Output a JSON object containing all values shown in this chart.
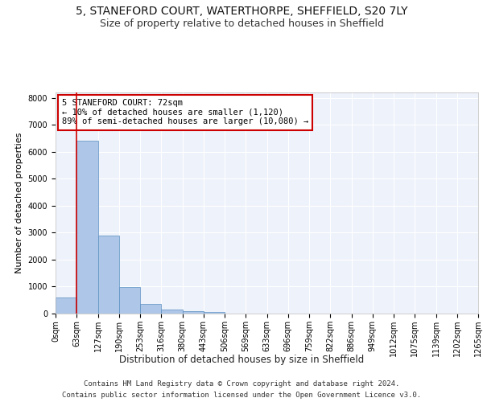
{
  "title_line1": "5, STANEFORD COURT, WATERTHORPE, SHEFFIELD, S20 7LY",
  "title_line2": "Size of property relative to detached houses in Sheffield",
  "xlabel": "Distribution of detached houses by size in Sheffield",
  "ylabel": "Number of detached properties",
  "bar_values": [
    600,
    6400,
    2900,
    975,
    350,
    160,
    90,
    60,
    0,
    0,
    0,
    0,
    0,
    0,
    0,
    0,
    0,
    0,
    0,
    0
  ],
  "bar_labels": [
    "0sqm",
    "63sqm",
    "127sqm",
    "190sqm",
    "253sqm",
    "316sqm",
    "380sqm",
    "443sqm",
    "506sqm",
    "569sqm",
    "633sqm",
    "696sqm",
    "759sqm",
    "822sqm",
    "886sqm",
    "949sqm",
    "1012sqm",
    "1075sqm",
    "1139sqm",
    "1202sqm",
    "1265sqm"
  ],
  "bar_color": "#aec6e8",
  "bar_edge_color": "#5a8fc2",
  "vline_x": 1,
  "vline_color": "#cc0000",
  "ylim": [
    0,
    8200
  ],
  "yticks": [
    0,
    1000,
    2000,
    3000,
    4000,
    5000,
    6000,
    7000,
    8000
  ],
  "annotation_text": "5 STANEFORD COURT: 72sqm\n← 10% of detached houses are smaller (1,120)\n89% of semi-detached houses are larger (10,080) →",
  "annotation_box_color": "#cc0000",
  "footnote_line1": "Contains HM Land Registry data © Crown copyright and database right 2024.",
  "footnote_line2": "Contains public sector information licensed under the Open Government Licence v3.0.",
  "background_color": "#eef2fa",
  "grid_color": "#ffffff",
  "title1_fontsize": 10,
  "title2_fontsize": 9,
  "xlabel_fontsize": 8.5,
  "ylabel_fontsize": 8,
  "tick_fontsize": 7,
  "annotation_fontsize": 7.5,
  "footnote_fontsize": 6.5
}
